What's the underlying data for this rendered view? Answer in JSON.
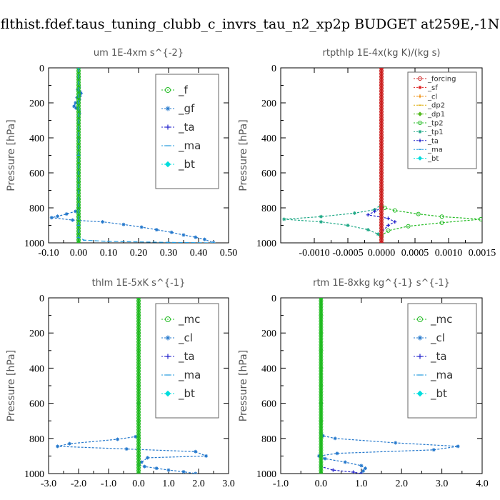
{
  "figure_title": "flthist.fdef.taus_tuning_clubb_c_invrs_tau_n2_xp2p  BUDGET at259E,-1N",
  "chart_data": [
    {
      "id": "um",
      "type": "line",
      "title": "um   1E-4xm s^{-2}",
      "ylabel": "Pressure [hPa]",
      "xlim": [
        -0.1,
        0.5
      ],
      "ylim": [
        1000,
        0
      ],
      "xticks": [
        "-0.10",
        "0.00",
        "0.10",
        "0.20",
        "0.30",
        "0.40",
        "0.50"
      ],
      "xtick_values": [
        -0.1,
        0.0,
        0.1,
        0.2,
        0.3,
        0.4,
        0.5
      ],
      "yticks": [
        "0",
        "200",
        "400",
        "600",
        "800",
        "1000"
      ],
      "ytick_values": [
        0,
        200,
        400,
        600,
        800,
        1000
      ],
      "legend_style": "big",
      "legend": [
        {
          "label": "_f",
          "color": "#22bb22",
          "marker": "o"
        },
        {
          "label": "_gf",
          "color": "#2277cc",
          "marker": "*"
        },
        {
          "label": "_ta",
          "color": "#2222cc",
          "marker": "+"
        },
        {
          "label": "_ma",
          "color": "#2299dd",
          "marker": "-"
        },
        {
          "label": "_bt",
          "color": "#00dddd",
          "marker": "diamond"
        }
      ],
      "series": [
        {
          "name": "_gf",
          "color": "#2277cc",
          "dash": "3,2",
          "x": [
            0.0,
            0.0,
            0.002,
            -0.003,
            0.004,
            0.008,
            0.005,
            -0.005,
            0.003,
            -0.01,
            -0.015,
            -0.008,
            0.002,
            0.003,
            0.001,
            0.0,
            0.0,
            0.0,
            0.0,
            0.0,
            0.0,
            0.0,
            0.0,
            -0.01,
            -0.04,
            -0.07,
            -0.09,
            -0.02,
            0.08,
            0.15,
            0.21,
            0.26,
            0.31,
            0.35,
            0.39,
            0.42,
            0.45
          ],
          "y": [
            0,
            60,
            110,
            125,
            135,
            145,
            160,
            170,
            180,
            200,
            220,
            230,
            245,
            260,
            280,
            320,
            400,
            500,
            600,
            700,
            750,
            780,
            800,
            820,
            835,
            848,
            856,
            870,
            880,
            895,
            910,
            925,
            940,
            955,
            968,
            980,
            1000
          ]
        },
        {
          "name": "_f",
          "color": "#22bb22",
          "dash": "",
          "x": [
            0,
            0,
            0,
            0,
            0,
            0,
            0,
            0,
            0,
            0,
            0,
            0,
            0,
            0,
            0,
            0,
            0,
            0,
            0,
            0,
            0
          ],
          "y": [
            0,
            50,
            100,
            150,
            200,
            250,
            300,
            350,
            400,
            450,
            500,
            550,
            600,
            650,
            700,
            750,
            800,
            850,
            900,
            950,
            1000
          ]
        },
        {
          "name": "_ma",
          "color": "#2299dd",
          "dash": "6,3",
          "x": [
            0,
            0,
            0,
            0.0,
            0.02,
            0.1,
            0.3,
            0.45
          ],
          "y": [
            0,
            500,
            900,
            970,
            985,
            992,
            997,
            1000
          ]
        }
      ]
    },
    {
      "id": "rtpthlp",
      "type": "line",
      "title": "rtpthlp   1E-4x(kg K)/(kg s)",
      "ylabel": "Pressure [hPa]",
      "xlim": [
        -0.0015,
        0.0015
      ],
      "ylim": [
        1000,
        0
      ],
      "xticks": [
        "-0.0010",
        "-0.0005",
        "0.0000",
        "0.0005",
        "0.0010",
        "0.0015"
      ],
      "xtick_values": [
        -0.001,
        -0.0005,
        0.0,
        0.0005,
        0.001,
        0.0015
      ],
      "yticks": [
        "0",
        "200",
        "400",
        "600",
        "800",
        "1000"
      ],
      "ytick_values": [
        0,
        200,
        400,
        600,
        800,
        1000
      ],
      "legend_style": "small",
      "legend": [
        {
          "label": "_forcing",
          "color": "#cc2222",
          "marker": "o"
        },
        {
          "label": "_sf",
          "color": "#dd2222",
          "marker": "*"
        },
        {
          "label": "_cl",
          "color": "#ee8800",
          "marker": "+"
        },
        {
          "label": "_dp2",
          "color": "#ddaa00",
          "marker": "-"
        },
        {
          "label": "_dp1",
          "color": "#55bb22",
          "marker": "diamond"
        },
        {
          "label": "_tp2",
          "color": "#22bb22",
          "marker": "o"
        },
        {
          "label": "_tp1",
          "color": "#22aa88",
          "marker": "*"
        },
        {
          "label": "_ta",
          "color": "#2222cc",
          "marker": "+"
        },
        {
          "label": "_ma",
          "color": "#2299dd",
          "marker": "-"
        },
        {
          "label": "_bt",
          "color": "#00dddd",
          "marker": "diamond"
        }
      ],
      "series": [
        {
          "name": "_tp2",
          "color": "#22bb22",
          "dash": "3,2",
          "x": [
            0,
            0,
            0,
            5e-05,
            0.0002,
            0.00055,
            0.0009,
            0.00148,
            0.0009,
            0.0004,
            0.0001,
            0.0,
            0.0
          ],
          "y": [
            0,
            700,
            790,
            800,
            815,
            835,
            850,
            865,
            885,
            905,
            930,
            960,
            1000
          ]
        },
        {
          "name": "_tp1",
          "color": "#22aa88",
          "dash": "3,2",
          "x": [
            0,
            0,
            -0.0001,
            -0.0004,
            -0.0009,
            -0.00145,
            -0.0009,
            -0.0005,
            -0.0002,
            -5e-05,
            0,
            0
          ],
          "y": [
            0,
            780,
            810,
            830,
            850,
            865,
            880,
            900,
            925,
            950,
            975,
            1000
          ]
        },
        {
          "name": "_ta",
          "color": "#2222cc",
          "dash": "3,2",
          "x": [
            0,
            0,
            -0.0001,
            -0.0002,
            0.0001,
            0.0002,
            0.0001,
            0.0,
            0.0
          ],
          "y": [
            0,
            800,
            820,
            840,
            860,
            880,
            900,
            940,
            1000
          ]
        },
        {
          "name": "_forcing",
          "color": "#cc2222",
          "dash": "",
          "x": [
            0,
            0,
            0,
            0,
            0,
            0,
            0,
            0,
            0,
            0,
            0
          ],
          "y": [
            0,
            100,
            200,
            300,
            400,
            500,
            600,
            700,
            800,
            900,
            1000
          ]
        }
      ]
    },
    {
      "id": "thlm",
      "type": "line",
      "title": "thlm   1E-5xK s^{-1}",
      "ylabel": "Pressure [hPa]",
      "xlim": [
        -3.0,
        3.0
      ],
      "ylim": [
        1000,
        0
      ],
      "xticks": [
        "-3.0",
        "-2.0",
        "-1.0",
        "0.0",
        "1.0",
        "2.0",
        "3.0"
      ],
      "xtick_values": [
        -3.0,
        -2.0,
        -1.0,
        0.0,
        1.0,
        2.0,
        3.0
      ],
      "yticks": [
        "0",
        "200",
        "400",
        "600",
        "800",
        "1000"
      ],
      "ytick_values": [
        0,
        200,
        400,
        600,
        800,
        1000
      ],
      "legend_style": "big",
      "legend": [
        {
          "label": "_mc",
          "color": "#22bb22",
          "marker": "o"
        },
        {
          "label": "_cl",
          "color": "#2277cc",
          "marker": "*"
        },
        {
          "label": "_ta",
          "color": "#2222cc",
          "marker": "+"
        },
        {
          "label": "_ma",
          "color": "#2299dd",
          "marker": "-"
        },
        {
          "label": "_bt",
          "color": "#00dddd",
          "marker": "diamond"
        }
      ],
      "series": [
        {
          "name": "_cl",
          "color": "#2277cc",
          "dash": "3,2",
          "x": [
            0,
            0,
            0,
            -0.1,
            -0.7,
            -2.3,
            -2.7,
            -0.4,
            1.9,
            2.25,
            0.3,
            0.1,
            0.0,
            0.2,
            0.6,
            1.0,
            1.5,
            1.9
          ],
          "y": [
            0,
            600,
            780,
            790,
            805,
            830,
            845,
            860,
            875,
            900,
            910,
            935,
            950,
            960,
            970,
            980,
            990,
            1000
          ]
        },
        {
          "name": "_mc",
          "color": "#22bb22",
          "dash": "",
          "x": [
            0,
            0,
            0,
            0,
            0,
            0,
            0,
            0,
            0,
            0,
            0
          ],
          "y": [
            0,
            100,
            200,
            300,
            400,
            500,
            600,
            700,
            800,
            900,
            1000
          ]
        }
      ]
    },
    {
      "id": "rtm",
      "type": "line",
      "title": "rtm   1E-8xkg kg^{-1} s^{-1}",
      "ylabel": "Pressure [hPa]",
      "xlim": [
        -1.0,
        4.0
      ],
      "ylim": [
        1000,
        0
      ],
      "xticks": [
        "-1.0",
        "0.0",
        "1.0",
        "2.0",
        "3.0",
        "4.0"
      ],
      "xtick_values": [
        -1.0,
        0.0,
        1.0,
        2.0,
        3.0,
        4.0
      ],
      "yticks": [
        "0",
        "200",
        "400",
        "600",
        "800",
        "1000"
      ],
      "ytick_values": [
        0,
        200,
        400,
        600,
        800,
        1000
      ],
      "legend_style": "big",
      "legend": [
        {
          "label": "_mc",
          "color": "#22bb22",
          "marker": "o"
        },
        {
          "label": "_cl",
          "color": "#2277cc",
          "marker": "*"
        },
        {
          "label": "_ta",
          "color": "#2222cc",
          "marker": "+"
        },
        {
          "label": "_ma",
          "color": "#2299dd",
          "marker": "-"
        },
        {
          "label": "_bt",
          "color": "#00dddd",
          "marker": "diamond"
        }
      ],
      "series": [
        {
          "name": "_cl",
          "color": "#2277cc",
          "dash": "3,2",
          "x": [
            0,
            0,
            0,
            0.05,
            0.35,
            1.85,
            3.4,
            2.8,
            0.4,
            -0.05,
            0.1,
            0.6,
            1.0,
            1.1,
            1.05,
            1.0
          ],
          "y": [
            0,
            600,
            770,
            785,
            800,
            825,
            845,
            865,
            885,
            900,
            915,
            935,
            955,
            970,
            985,
            1000
          ]
        },
        {
          "name": "_ta",
          "color": "#2222cc",
          "dash": "3,2",
          "x": [
            0,
            0,
            0.0,
            0.3,
            0.8,
            1.0
          ],
          "y": [
            0,
            900,
            960,
            980,
            992,
            1000
          ]
        },
        {
          "name": "_mc",
          "color": "#22bb22",
          "dash": "",
          "x": [
            0,
            0,
            0,
            0,
            0,
            0,
            0,
            0,
            0,
            0,
            0
          ],
          "y": [
            0,
            100,
            200,
            300,
            400,
            500,
            600,
            700,
            800,
            900,
            1000
          ]
        }
      ]
    }
  ]
}
